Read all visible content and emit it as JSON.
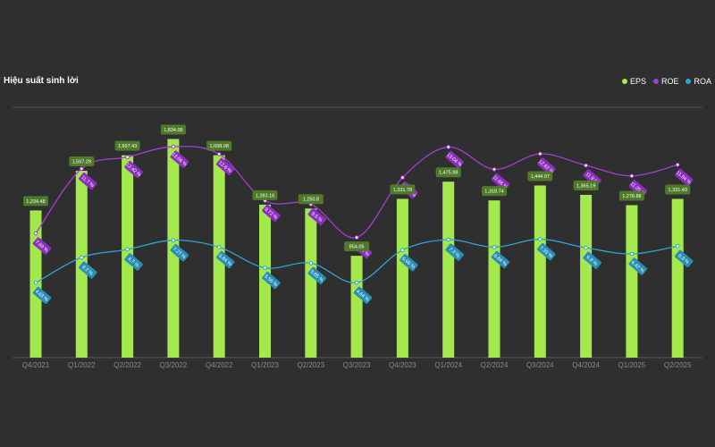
{
  "title": "Hiệu suất sinh lời",
  "legend": [
    {
      "label": "EPS",
      "color": "#a3e84c"
    },
    {
      "label": "ROE",
      "color": "#a43dd6"
    },
    {
      "label": "ROA",
      "color": "#2da3cf"
    }
  ],
  "chart_data": {
    "type": "bar",
    "categories": [
      "Q4/2021",
      "Q1/2022",
      "Q2/2022",
      "Q3/2022",
      "Q4/2022",
      "Q1/2023",
      "Q2/2023",
      "Q3/2023",
      "Q4/2023",
      "Q1/2024",
      "Q2/2024",
      "Q3/2024",
      "Q4/2024",
      "Q1/2025",
      "Q2/2025"
    ],
    "series": [
      {
        "name": "EPS",
        "type": "bar",
        "color": "#a3e84c",
        "values": [
          1234.48,
          1567.29,
          1697.43,
          1834.09,
          1698.08,
          1283.16,
          1250.8,
          854.05,
          1331.78,
          1475.98,
          1318.74,
          1444.07,
          1365.19,
          1278.88,
          1331.43
        ],
        "labels": [
          "1,234.48",
          "1,567.29",
          "1,697.43",
          "1,834.09",
          "1,698.08",
          "1,283.16",
          "1,250.8",
          "854.05",
          "1,331.78",
          "1,475.98",
          "1,318.74",
          "1,444.07",
          "1,365.19",
          "1,278.88",
          "1,331.43"
        ]
      },
      {
        "name": "ROE",
        "type": "line",
        "color": "#a43dd6",
        "values": [
          7.69,
          11.7,
          12.42,
          13.06,
          12.6,
          9.72,
          9.5,
          7.44,
          11.15,
          13.04,
          11.66,
          12.62,
          11.9,
          11.25,
          11.94
        ],
        "labels": [
          "7.69 %",
          "11.7 %",
          "12.42 %",
          "13.06 %",
          "12.6 %",
          "9.72 %",
          "9.5 %",
          "7.44 %",
          "11.15 %",
          "13.04 %",
          "11.66 %",
          "12.62 %",
          "11.9 %",
          "11.25 %",
          "11.94 %"
        ]
      },
      {
        "name": "ROA",
        "type": "line",
        "color": "#2da3cf",
        "values": [
          4.63,
          6.2,
          6.7,
          7.27,
          6.84,
          5.56,
          5.85,
          4.64,
          6.66,
          7.3,
          6.84,
          7.33,
          6.8,
          6.42,
          6.9
        ],
        "labels": [
          "4.63 %",
          "6.2 %",
          "6.7 %",
          "7.27 %",
          "6.84 %",
          "5.56 %",
          "5.85 %",
          "4.64 %",
          "6.66 %",
          "7.3 %",
          "6.84 %",
          "7.33 %",
          "6.8 %",
          "6.42 %",
          "6.9 %"
        ]
      }
    ],
    "grid": false,
    "legend_position": "top-right"
  }
}
